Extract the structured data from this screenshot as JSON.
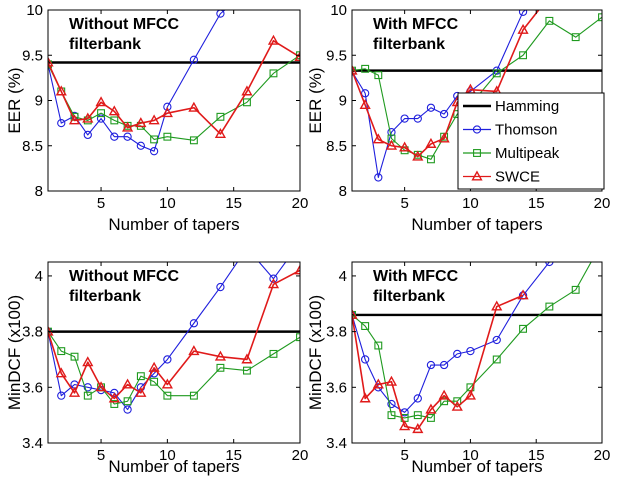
{
  "colors": {
    "Hamming": "#000000",
    "Thomson": "#1f1fdd",
    "Multipeak": "#1f9a1f",
    "SWCE": "#e01a1a"
  },
  "chart_data": [
    {
      "id": "eer-without",
      "type": "line",
      "title_lines": [
        "Without MFCC",
        "filterbank"
      ],
      "xlabel": "Number of tapers",
      "ylabel": "EER (%)",
      "xlim": [
        1,
        20
      ],
      "ylim": [
        8,
        10
      ],
      "xticks": [
        5,
        10,
        15,
        20
      ],
      "yticks": [
        8,
        8.5,
        9,
        9.5,
        10
      ],
      "ytick_labels": [
        "8",
        "8.5",
        "9",
        "9.5",
        "10"
      ],
      "legend": null,
      "series": [
        {
          "name": "Hamming",
          "marker": "none",
          "x": [
            1,
            20
          ],
          "y": [
            9.42,
            9.42
          ]
        },
        {
          "name": "Thomson",
          "marker": "circle",
          "x": [
            1,
            2,
            3,
            4,
            5,
            6,
            7,
            8,
            9,
            10,
            12,
            14,
            16
          ],
          "y": [
            9.4,
            8.75,
            8.83,
            8.62,
            8.8,
            8.6,
            8.6,
            8.5,
            8.44,
            8.93,
            9.45,
            9.96,
            10.2
          ]
        },
        {
          "name": "Multipeak",
          "marker": "square",
          "x": [
            1,
            2,
            3,
            4,
            5,
            6,
            7,
            8,
            9,
            10,
            12,
            14,
            16,
            18,
            20
          ],
          "y": [
            9.4,
            9.1,
            8.82,
            8.78,
            8.86,
            8.78,
            8.72,
            8.72,
            8.57,
            8.6,
            8.56,
            8.82,
            8.98,
            9.3,
            9.5
          ]
        },
        {
          "name": "SWCE",
          "marker": "triangle",
          "x": [
            1,
            2,
            3,
            4,
            5,
            6,
            7,
            8,
            9,
            10,
            12,
            14,
            16,
            18,
            20
          ],
          "y": [
            9.42,
            9.1,
            8.78,
            8.8,
            8.98,
            8.88,
            8.7,
            8.75,
            8.78,
            8.86,
            8.92,
            8.63,
            9.1,
            9.66,
            9.48
          ]
        }
      ]
    },
    {
      "id": "eer-with",
      "type": "line",
      "title_lines": [
        "With MFCC",
        "filterbank"
      ],
      "xlabel": "Number of tapers",
      "ylabel": "EER (%)",
      "xlim": [
        1,
        20
      ],
      "ylim": [
        8,
        10
      ],
      "xticks": [
        5,
        10,
        15,
        20
      ],
      "yticks": [
        8,
        8.5,
        9,
        9.5,
        10
      ],
      "ytick_labels": [
        "8",
        "8.5",
        "9",
        "9.5",
        "10"
      ],
      "legend": "right",
      "series": [
        {
          "name": "Hamming",
          "marker": "none",
          "x": [
            1,
            20
          ],
          "y": [
            9.33,
            9.33
          ]
        },
        {
          "name": "Thomson",
          "marker": "circle",
          "x": [
            1,
            2,
            3,
            4,
            5,
            6,
            7,
            8,
            9,
            10,
            12,
            14,
            16
          ],
          "y": [
            9.32,
            9.08,
            8.15,
            8.65,
            8.8,
            8.8,
            8.92,
            8.85,
            9.05,
            9.1,
            9.33,
            9.98,
            10.2
          ]
        },
        {
          "name": "Multipeak",
          "marker": "square",
          "x": [
            1,
            2,
            3,
            4,
            5,
            6,
            7,
            8,
            9,
            10,
            12,
            14,
            16,
            18,
            20
          ],
          "y": [
            9.33,
            9.35,
            9.28,
            8.58,
            8.45,
            8.4,
            8.35,
            8.6,
            8.85,
            8.95,
            9.3,
            9.5,
            9.88,
            9.7,
            9.92
          ]
        },
        {
          "name": "SWCE",
          "marker": "triangle",
          "x": [
            1,
            2,
            3,
            4,
            5,
            6,
            7,
            8,
            9,
            10,
            12,
            14,
            16
          ],
          "y": [
            9.33,
            8.95,
            8.57,
            8.5,
            8.48,
            8.38,
            8.52,
            8.58,
            8.98,
            9.12,
            9.1,
            9.78,
            10.15
          ]
        }
      ]
    },
    {
      "id": "mindcf-without",
      "type": "line",
      "title_lines": [
        "Without MFCC",
        "filterbank"
      ],
      "xlabel": "Number of tapers",
      "ylabel": "MinDCF (x100)",
      "xlim": [
        1,
        20
      ],
      "ylim": [
        3.4,
        4.05
      ],
      "xticks": [
        5,
        10,
        15,
        20
      ],
      "yticks": [
        3.4,
        3.6,
        3.8,
        4.0
      ],
      "ytick_labels": [
        "3.4",
        "3.6",
        "3.8",
        "4"
      ],
      "legend": null,
      "series": [
        {
          "name": "Hamming",
          "marker": "none",
          "x": [
            1,
            20
          ],
          "y": [
            3.8,
            3.8
          ]
        },
        {
          "name": "Thomson",
          "marker": "circle",
          "x": [
            1,
            2,
            3,
            4,
            5,
            6,
            7,
            8,
            9,
            10,
            12,
            14,
            16,
            18,
            20
          ],
          "y": [
            3.8,
            3.57,
            3.61,
            3.6,
            3.59,
            3.58,
            3.52,
            3.6,
            3.65,
            3.7,
            3.83,
            3.96,
            4.1,
            3.99,
            4.12
          ]
        },
        {
          "name": "Multipeak",
          "marker": "square",
          "x": [
            1,
            2,
            3,
            4,
            5,
            6,
            7,
            8,
            9,
            10,
            12,
            14,
            16,
            18,
            20
          ],
          "y": [
            3.8,
            3.73,
            3.71,
            3.57,
            3.6,
            3.54,
            3.55,
            3.64,
            3.62,
            3.57,
            3.57,
            3.67,
            3.66,
            3.72,
            3.78
          ]
        },
        {
          "name": "SWCE",
          "marker": "triangle",
          "x": [
            1,
            2,
            3,
            4,
            5,
            6,
            7,
            8,
            9,
            10,
            12,
            14,
            16,
            18,
            20
          ],
          "y": [
            3.8,
            3.65,
            3.58,
            3.69,
            3.6,
            3.56,
            3.61,
            3.58,
            3.67,
            3.61,
            3.73,
            3.71,
            3.7,
            3.97,
            4.02
          ]
        }
      ]
    },
    {
      "id": "mindcf-with",
      "type": "line",
      "title_lines": [
        "With MFCC",
        "filterbank"
      ],
      "xlabel": "Number of tapers",
      "ylabel": "MinDCF (x100)",
      "xlim": [
        1,
        20
      ],
      "ylim": [
        3.4,
        4.05
      ],
      "xticks": [
        5,
        10,
        15,
        20
      ],
      "yticks": [
        3.4,
        3.6,
        3.8,
        4.0
      ],
      "ytick_labels": [
        "3.4",
        "3.6",
        "3.8",
        "4"
      ],
      "legend": null,
      "series": [
        {
          "name": "Hamming",
          "marker": "none",
          "x": [
            1,
            20
          ],
          "y": [
            3.86,
            3.86
          ]
        },
        {
          "name": "Thomson",
          "marker": "circle",
          "x": [
            1,
            2,
            3,
            4,
            5,
            6,
            7,
            8,
            9,
            10,
            12,
            14,
            16
          ],
          "y": [
            3.86,
            3.7,
            3.6,
            3.54,
            3.51,
            3.56,
            3.68,
            3.68,
            3.72,
            3.73,
            3.77,
            3.93,
            4.05
          ]
        },
        {
          "name": "Multipeak",
          "marker": "square",
          "x": [
            1,
            2,
            3,
            4,
            5,
            6,
            7,
            8,
            9,
            10,
            12,
            14,
            16,
            18,
            20
          ],
          "y": [
            3.86,
            3.82,
            3.75,
            3.5,
            3.49,
            3.5,
            3.49,
            3.55,
            3.55,
            3.6,
            3.7,
            3.81,
            3.89,
            3.95,
            4.12
          ]
        },
        {
          "name": "SWCE",
          "marker": "triangle",
          "x": [
            1,
            2,
            3,
            4,
            5,
            6,
            7,
            8,
            9,
            10,
            12,
            14
          ],
          "y": [
            3.86,
            3.56,
            3.61,
            3.62,
            3.46,
            3.45,
            3.52,
            3.57,
            3.53,
            3.57,
            3.89,
            3.93
          ]
        }
      ]
    }
  ]
}
